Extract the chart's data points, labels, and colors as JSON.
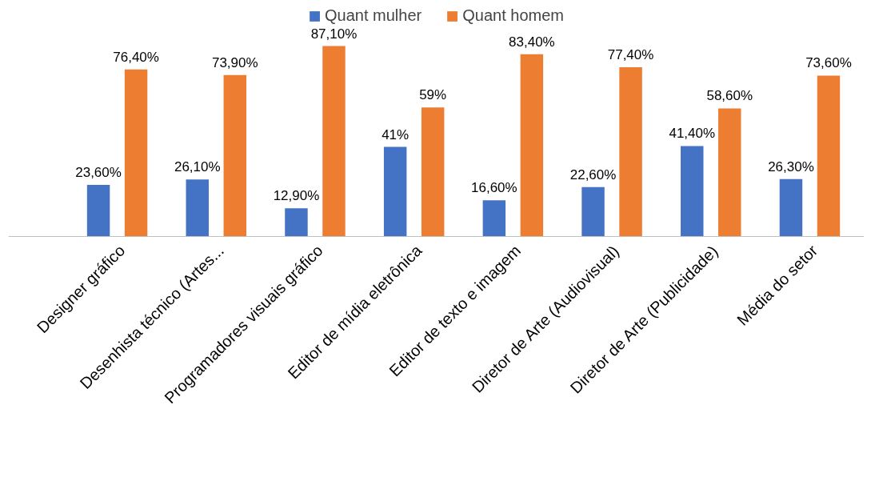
{
  "chart_data": {
    "type": "bar",
    "categories": [
      "Designer gráfico",
      "Desenhista técnico (Artes...",
      "Programadores visuais gráfico",
      "Editor de mídia eletrônica",
      "Editor de texto e imagem",
      "Diretor de Arte (Audiovisual)",
      "Diretor de Arte (Publicidade)",
      "Média do setor"
    ],
    "series": [
      {
        "name": "Quant mulher",
        "color": "#4472c4",
        "values": [
          23.6,
          26.1,
          12.9,
          41,
          16.6,
          22.6,
          41.4,
          26.3
        ],
        "value_labels": [
          "23,60%",
          "26,10%",
          "12,90%",
          "41%",
          "16,60%",
          "22,60%",
          "41,40%",
          "26,30%"
        ]
      },
      {
        "name": "Quant homem",
        "color": "#ed7d31",
        "values": [
          76.4,
          73.9,
          87.1,
          59,
          83.4,
          77.4,
          58.6,
          73.6
        ],
        "value_labels": [
          "76,40%",
          "73,90%",
          "87,10%",
          "59%",
          "83,40%",
          "77,40%",
          "58,60%",
          "73,60%"
        ]
      }
    ],
    "legend": "top"
  }
}
